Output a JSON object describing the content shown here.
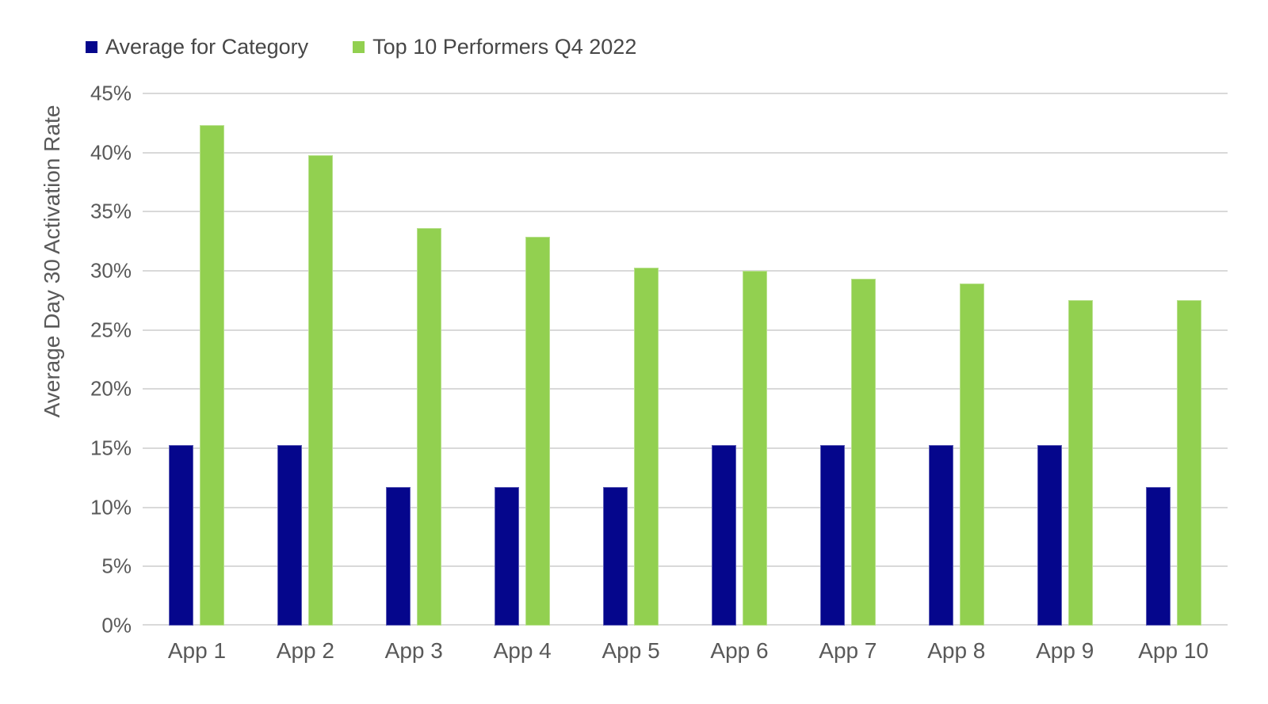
{
  "legend": {
    "items": [
      {
        "label": "Average for Category",
        "color": "#05068C"
      },
      {
        "label": "Top 10 Performers Q4 2022",
        "color": "#92D050"
      }
    ]
  },
  "chart_data": {
    "type": "bar",
    "title": "",
    "xlabel": "",
    "ylabel": "Average Day 30 Activation Rate",
    "ylim": [
      0,
      45
    ],
    "ytick_step": 5,
    "ytick_labels": [
      "0%",
      "5%",
      "10%",
      "15%",
      "20%",
      "25%",
      "30%",
      "35%",
      "40%",
      "45%"
    ],
    "grid": true,
    "legend_position": "top-left",
    "categories": [
      "App 1",
      "App 2",
      "App 3",
      "App 4",
      "App 5",
      "App 6",
      "App 7",
      "App 8",
      "App 9",
      "App 10"
    ],
    "series": [
      {
        "name": "Average for Category",
        "color": "#05068C",
        "values": [
          15.3,
          15.3,
          11.7,
          11.7,
          11.7,
          15.3,
          15.3,
          15.3,
          15.3,
          11.7
        ]
      },
      {
        "name": "Top 10 Performers Q4 2022",
        "color": "#92D050",
        "values": [
          42.3,
          39.8,
          33.6,
          32.9,
          30.3,
          30.0,
          29.3,
          28.9,
          27.5,
          27.5
        ]
      }
    ]
  },
  "colors": {
    "gridline": "#D9D9D9",
    "axis_text": "#595959",
    "legend_text": "#474747",
    "background": "#FFFFFF"
  }
}
